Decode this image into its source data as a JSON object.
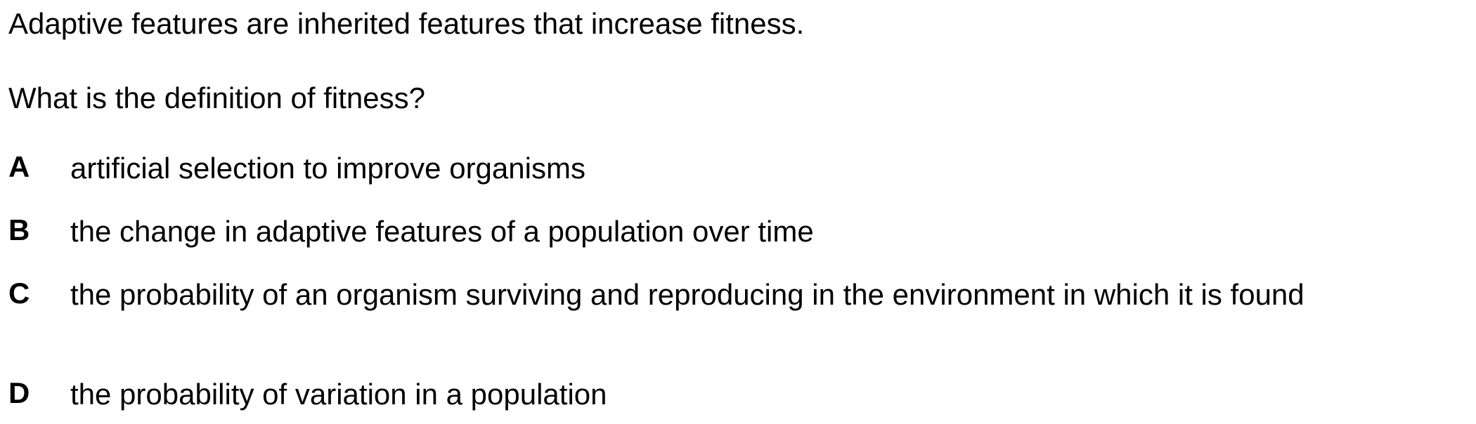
{
  "stem": "Adaptive features are inherited features that increase fitness.",
  "question": "What is the definition of fitness?",
  "options": [
    {
      "letter": "A",
      "text": "artificial selection to improve organisms"
    },
    {
      "letter": "B",
      "text": "the change in adaptive features of a population over time"
    },
    {
      "letter": "C",
      "text": "the probability of an organism surviving and reproducing in the environment in which it is found"
    },
    {
      "letter": "D",
      "text": "the probability of variation in a population"
    }
  ]
}
